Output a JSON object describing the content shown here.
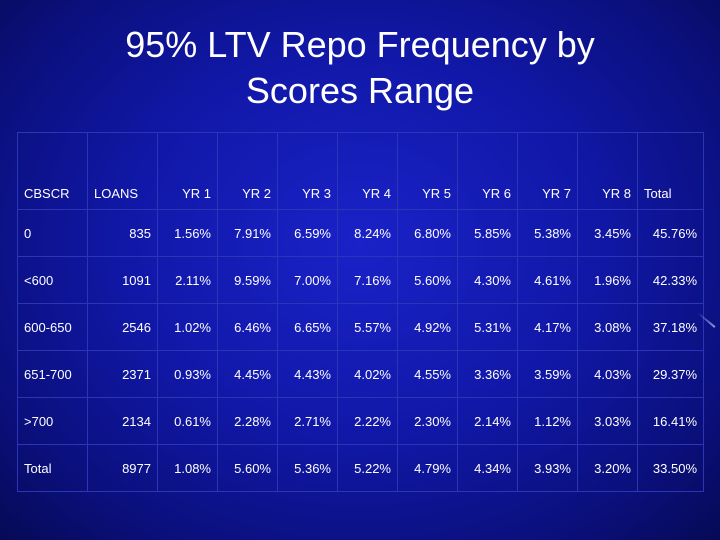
{
  "title": {
    "line1": "95% LTV Repo Frequency by",
    "line2": "Scores Range"
  },
  "table": {
    "headers": [
      "CBSCR",
      "LOANS",
      "YR 1",
      "YR 2",
      "YR 3",
      "YR 4",
      "YR 5",
      "YR 6",
      "YR 7",
      "YR 8",
      "Total"
    ],
    "rows": [
      [
        "0",
        "835",
        "1.56%",
        "7.91%",
        "6.59%",
        "8.24%",
        "6.80%",
        "5.85%",
        "5.38%",
        "3.45%",
        "45.76%"
      ],
      [
        "<600",
        "1091",
        "2.11%",
        "9.59%",
        "7.00%",
        "7.16%",
        "5.60%",
        "4.30%",
        "4.61%",
        "1.96%",
        "42.33%"
      ],
      [
        "600-650",
        "2546",
        "1.02%",
        "6.46%",
        "6.65%",
        "5.57%",
        "4.92%",
        "5.31%",
        "4.17%",
        "3.08%",
        "37.18%"
      ],
      [
        "651-700",
        "2371",
        "0.93%",
        "4.45%",
        "4.43%",
        "4.02%",
        "4.55%",
        "3.36%",
        "3.59%",
        "4.03%",
        "29.37%"
      ],
      [
        ">700",
        "2134",
        "0.61%",
        "2.28%",
        "2.71%",
        "2.22%",
        "2.30%",
        "2.14%",
        "1.12%",
        "3.03%",
        "16.41%"
      ],
      [
        "Total",
        "8977",
        "1.08%",
        "5.60%",
        "5.36%",
        "5.22%",
        "4.79%",
        "4.34%",
        "3.93%",
        "3.20%",
        "33.50%"
      ]
    ]
  },
  "colors": {
    "background": "#1118a8",
    "text": "#ffffff",
    "grid_lines": "#2a35b8"
  }
}
